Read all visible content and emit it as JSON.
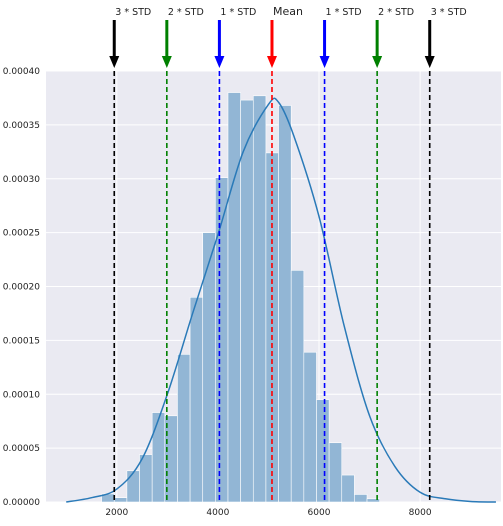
{
  "chart_data": {
    "type": "histogram",
    "title": "",
    "xlabel": "",
    "ylabel": "",
    "xlim": [
      600,
      9600
    ],
    "ylim": [
      0,
      0.0004
    ],
    "grid": true,
    "xticks": [
      2000,
      4000,
      6000,
      8000
    ],
    "yticks": [
      0.0,
      5e-05,
      0.0001,
      0.00015,
      0.0002,
      0.00025,
      0.0003,
      0.00035,
      0.0004
    ],
    "ytick_labels": [
      "0.00000",
      "0.00005",
      "0.00010",
      "0.00015",
      "0.00020",
      "0.00025",
      "0.00030",
      "0.00035",
      "0.00040"
    ],
    "histogram": {
      "bin_start": 1700,
      "bin_width": 250,
      "density": [
        7.5e-06,
        4e-06,
        2.9e-05,
        4.4e-05,
        8.3e-05,
        8e-05,
        0.000137,
        0.00019,
        0.00025,
        0.000301,
        0.00038,
        0.000373,
        0.000377,
        0.000324,
        0.000368,
        0.000215,
        0.000139,
        9.5e-05,
        5.5e-05,
        2.5e-05,
        7e-06,
        3e-06
      ]
    },
    "kde": {
      "x": [
        1000,
        1500,
        2000,
        2500,
        3000,
        3500,
        4000,
        4500,
        5000,
        5200,
        5500,
        6000,
        6500,
        7000,
        7500,
        8000,
        8500,
        9000,
        9500
      ],
      "y": [
        0.0,
        4e-06,
        1.2e-05,
        4e-05,
        0.0001,
        0.000175,
        0.000248,
        0.000325,
        0.000369,
        0.000371,
        0.00034,
        0.000265,
        0.000163,
        8e-05,
        3.3e-05,
        9e-06,
        3e-06,
        5e-07,
        0.0
      ]
    },
    "mean": 5070,
    "std": 1040,
    "markers": [
      {
        "label": "3 * STD",
        "x": 1950,
        "color": "#000000"
      },
      {
        "label": "2 * STD",
        "x": 2990,
        "color": "#008000"
      },
      {
        "label": "1 * STD",
        "x": 4030,
        "color": "#0000ff"
      },
      {
        "label": "Mean",
        "x": 5070,
        "color": "#ff0000"
      },
      {
        "label": "1 * STD",
        "x": 6110,
        "color": "#0000ff"
      },
      {
        "label": "2 * STD",
        "x": 7150,
        "color": "#008000"
      },
      {
        "label": "3 * STD",
        "x": 8190,
        "color": "#000000"
      }
    ],
    "colors": {
      "plot_background": "#eaeaf2",
      "grid": "#ffffff",
      "histogram_fill": "#92b6d5",
      "kde_line": "#2a7ab8"
    }
  }
}
